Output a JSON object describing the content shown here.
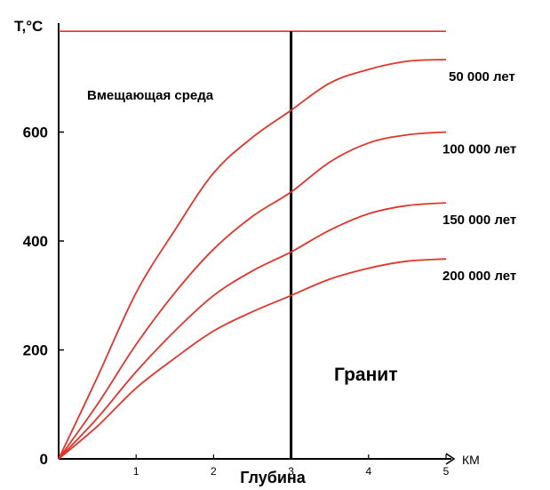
{
  "chart_data": {
    "type": "line",
    "ylabel": "T,°C",
    "xlabel": "Глубина",
    "xunit": "КМ",
    "xlim": [
      0,
      5
    ],
    "ylim": [
      0,
      800
    ],
    "x_ticks": [
      "1",
      "2",
      "3",
      "4",
      "5"
    ],
    "y_ticks": [
      {
        "value": 0,
        "label": "0"
      },
      {
        "value": 200,
        "label": "200"
      },
      {
        "value": 400,
        "label": "400"
      },
      {
        "value": 600,
        "label": "600"
      }
    ],
    "grid": false,
    "line_color": "#e0352b",
    "boundary": {
      "x": 3,
      "color": "#000000"
    },
    "contact_temperature": 785,
    "series": [
      {
        "name": "50 000 лет",
        "x": [
          0,
          0.5,
          1,
          1.5,
          2,
          2.5,
          3,
          3.5,
          4,
          4.5,
          5
        ],
        "y": [
          0,
          150,
          305,
          420,
          525,
          590,
          640,
          690,
          715,
          730,
          733
        ]
      },
      {
        "name": "100 000 лет",
        "x": [
          0,
          0.5,
          1,
          1.5,
          2,
          2.5,
          3,
          3.5,
          4,
          4.5,
          5
        ],
        "y": [
          0,
          100,
          210,
          305,
          385,
          445,
          490,
          545,
          580,
          595,
          600
        ]
      },
      {
        "name": "150 000 лет",
        "x": [
          0,
          0.5,
          1,
          1.5,
          2,
          2.5,
          3,
          3.5,
          4,
          4.5,
          5
        ],
        "y": [
          0,
          75,
          160,
          235,
          300,
          345,
          380,
          420,
          450,
          465,
          470
        ]
      },
      {
        "name": "200 000 лет",
        "x": [
          0,
          0.5,
          1,
          1.5,
          2,
          2.5,
          3,
          3.5,
          4,
          4.5,
          5
        ],
        "y": [
          0,
          60,
          130,
          185,
          235,
          270,
          300,
          330,
          350,
          363,
          367
        ]
      }
    ],
    "annotations": {
      "host": "Вмещающая среда",
      "granite": "Гранит"
    }
  }
}
